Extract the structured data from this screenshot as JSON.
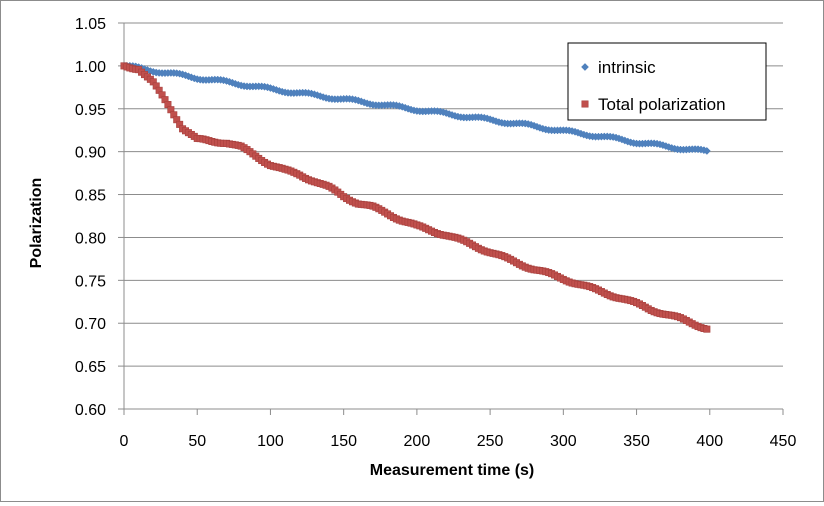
{
  "chart_data": {
    "type": "scatter",
    "title": "",
    "xlabel": "Measurement time (s)",
    "ylabel": "Polarization",
    "xlim": [
      0,
      450
    ],
    "ylim": [
      0.6,
      1.05
    ],
    "x_ticks": [
      "0",
      "50",
      "100",
      "150",
      "200",
      "250",
      "300",
      "350",
      "400",
      "450"
    ],
    "y_ticks": [
      "0.60",
      "0.65",
      "0.70",
      "0.75",
      "0.80",
      "0.85",
      "0.90",
      "0.95",
      "1.00",
      "1.05"
    ],
    "grid": "horizontal",
    "legend_position": "top-right",
    "series": [
      {
        "name": "intrinsic",
        "color": "#4f81bd",
        "marker": "diamond",
        "points": [
          [
            0,
            1.0
          ],
          [
            25,
            0.993
          ],
          [
            50,
            0.986
          ],
          [
            75,
            0.98
          ],
          [
            100,
            0.973
          ],
          [
            125,
            0.967
          ],
          [
            150,
            0.961
          ],
          [
            175,
            0.955
          ],
          [
            200,
            0.949
          ],
          [
            225,
            0.943
          ],
          [
            250,
            0.937
          ],
          [
            275,
            0.931
          ],
          [
            300,
            0.924
          ],
          [
            325,
            0.918
          ],
          [
            350,
            0.911
          ],
          [
            375,
            0.905
          ],
          [
            398,
            0.9
          ]
        ]
      },
      {
        "name": "Total polarization",
        "color": "#c0504d",
        "marker": "square",
        "points": [
          [
            0,
            1.0
          ],
          [
            10,
            0.997
          ],
          [
            20,
            0.98
          ],
          [
            30,
            0.955
          ],
          [
            40,
            0.928
          ],
          [
            50,
            0.914
          ],
          [
            60,
            0.912
          ],
          [
            70,
            0.911
          ],
          [
            80,
            0.905
          ],
          [
            90,
            0.895
          ],
          [
            100,
            0.885
          ],
          [
            110,
            0.878
          ],
          [
            120,
            0.873
          ],
          [
            130,
            0.866
          ],
          [
            140,
            0.858
          ],
          [
            150,
            0.848
          ],
          [
            160,
            0.84
          ],
          [
            170,
            0.835
          ],
          [
            180,
            0.828
          ],
          [
            190,
            0.82
          ],
          [
            200,
            0.813
          ],
          [
            220,
            0.803
          ],
          [
            240,
            0.79
          ],
          [
            260,
            0.776
          ],
          [
            280,
            0.763
          ],
          [
            300,
            0.752
          ],
          [
            320,
            0.74
          ],
          [
            340,
            0.729
          ],
          [
            360,
            0.716
          ],
          [
            380,
            0.705
          ],
          [
            398,
            0.694
          ]
        ]
      }
    ]
  }
}
